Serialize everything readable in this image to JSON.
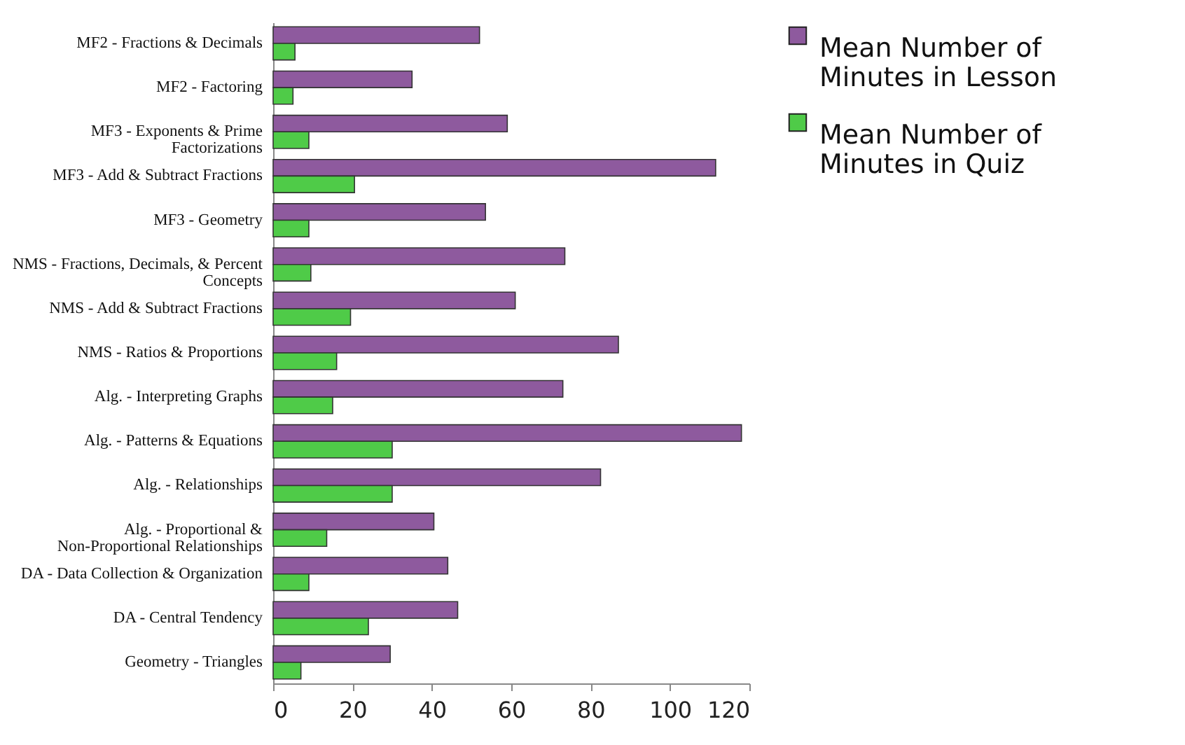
{
  "chart_data": {
    "type": "bar",
    "orientation": "horizontal",
    "categories": [
      "MF2 - Fractions & Decimals",
      "MF2 - Factoring",
      "MF3 - Exponents & Prime Factorizations",
      "MF3 - Add & Subtract Fractions",
      "MF3 - Geometry",
      "NMS - Fractions, Decimals, & Percent Concepts",
      "NMS - Add & Subtract Fractions",
      "NMS - Ratios & Proportions",
      "Alg. - Interpreting Graphs",
      "Alg. - Patterns & Equations",
      "Alg. - Relationships",
      "Alg. - Proportional & Non-Proportional Relationships",
      "DA - Data Collection & Organization",
      "DA - Central Tendency",
      "Geometry - Triangles"
    ],
    "series": [
      {
        "name": "Mean Number of Minutes in Lesson",
        "color": "#8e5a9e",
        "values": [
          52,
          35,
          59,
          111.5,
          53.5,
          73.5,
          61,
          87,
          73,
          118,
          82.5,
          40.5,
          44,
          46.5,
          29.5
        ]
      },
      {
        "name": "Mean Number of Minutes in Quiz",
        "color": "#4fcb48",
        "values": [
          5.5,
          5,
          9,
          20.5,
          9,
          9.5,
          19.5,
          16,
          15,
          30,
          30,
          13.5,
          9,
          24,
          7
        ]
      }
    ],
    "xlim": [
      0,
      120
    ],
    "xticks": [
      0,
      20,
      40,
      60,
      80,
      100,
      120
    ],
    "grid": false,
    "legend": "right"
  }
}
